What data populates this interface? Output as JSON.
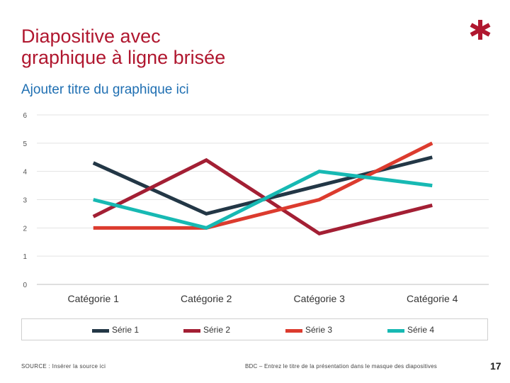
{
  "slide": {
    "title_line1": "Diapositive avec",
    "title_line2": "graphique à ligne brisée",
    "accent_color": "#b0172f",
    "logo_icon": "asterisk-logo-icon"
  },
  "footer": {
    "source": "SOURCE : Insérer la source ici",
    "center": "BDC – Entrez le titre de la présentation dans le masque des diapositives",
    "page_number": "17"
  },
  "chart_data": {
    "type": "line",
    "title": "Ajouter titre du graphique ici",
    "categories": [
      "Catégorie 1",
      "Catégorie 2",
      "Catégorie 3",
      "Catégorie 4"
    ],
    "series": [
      {
        "name": "Série 1",
        "color": "#233746",
        "values": [
          4.3,
          2.5,
          3.5,
          4.5
        ]
      },
      {
        "name": "Série 2",
        "color": "#a31f34",
        "values": [
          2.4,
          4.4,
          1.8,
          2.8
        ]
      },
      {
        "name": "Série 3",
        "color": "#dc3b2e",
        "values": [
          2.0,
          2.0,
          3.0,
          5.0
        ]
      },
      {
        "name": "Série 4",
        "color": "#17b9b3",
        "values": [
          3.0,
          2.0,
          4.0,
          3.5
        ]
      }
    ],
    "ylim": [
      0,
      6
    ],
    "yticks": [
      "0",
      "1",
      "2",
      "3",
      "4",
      "5",
      "6"
    ],
    "grid": true,
    "legend_position": "bottom"
  }
}
